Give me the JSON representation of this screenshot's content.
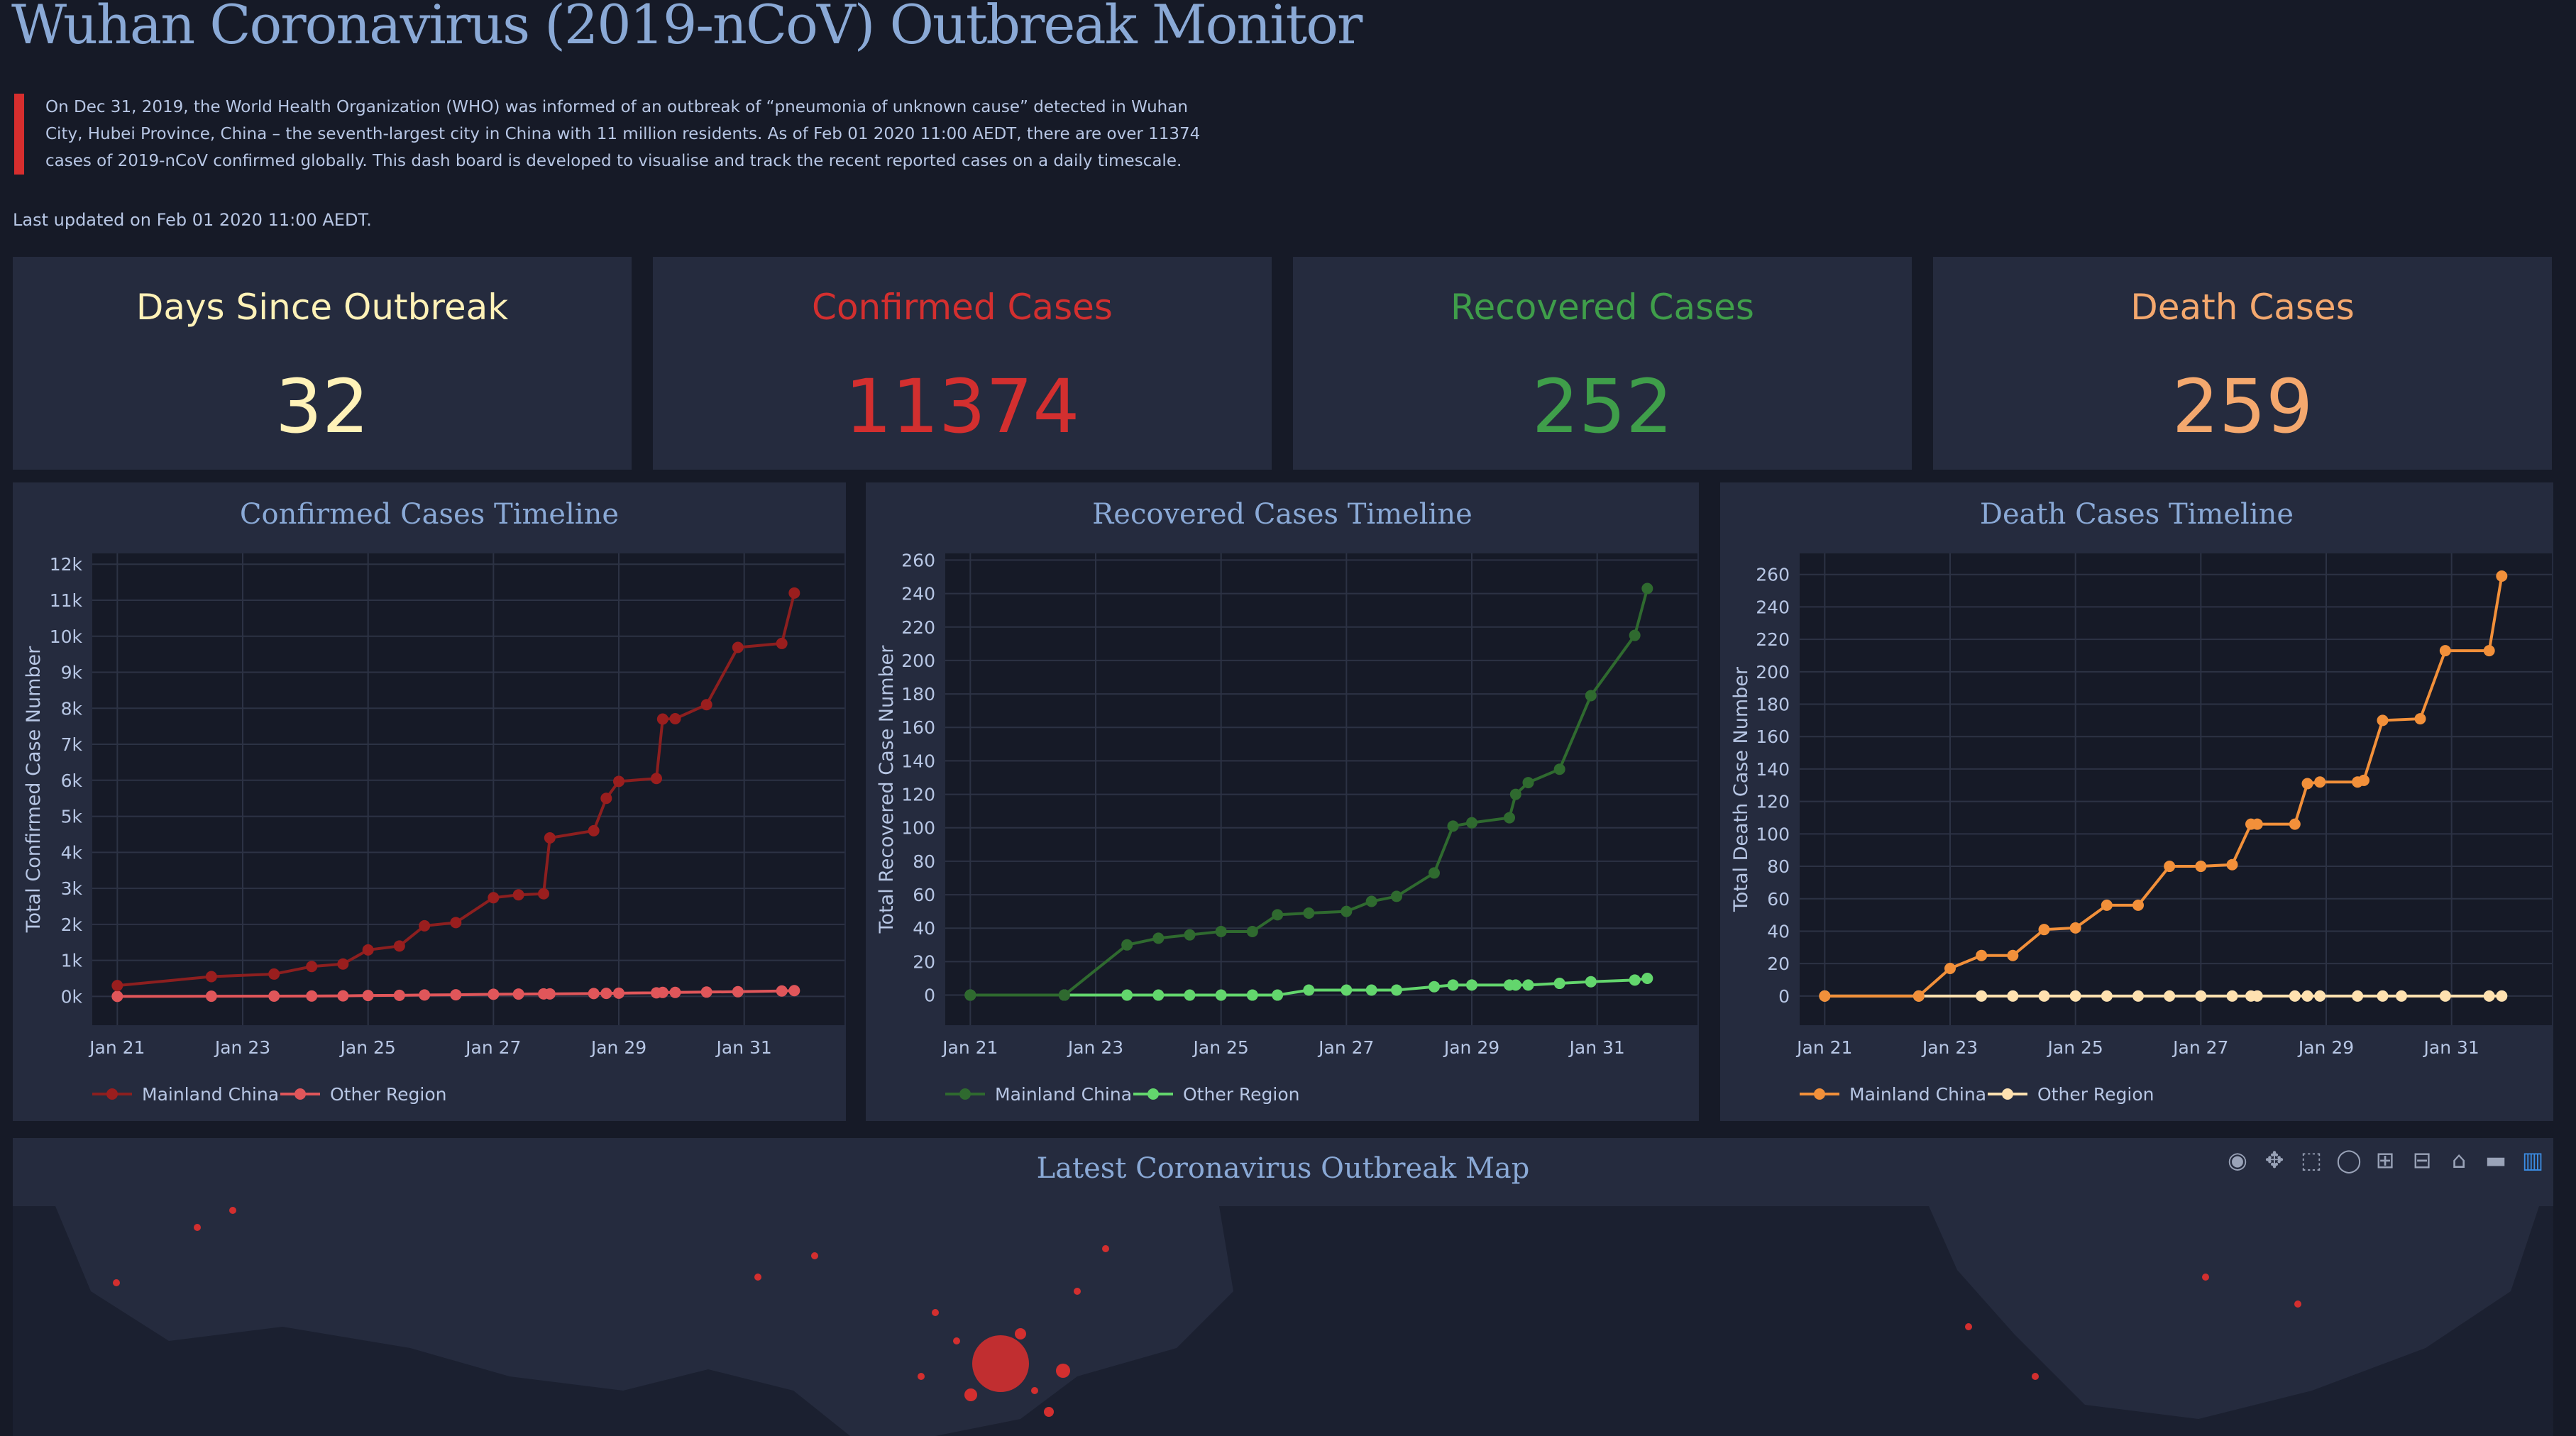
{
  "header": {
    "title": "Wuhan Coronavirus (2019-nCoV) Outbreak Monitor",
    "intro": "On Dec 31, 2019, the World Health Organization (WHO) was informed of an outbreak of “pneumonia of unknown cause” detected in Wuhan City, Hubei Province, China – the seventh-largest city in China with 11 million residents. As of Feb 01 2020 11:00 AEDT, there are over 11374 cases of 2019-nCoV confirmed globally. This dash board is developed to visualise and track the recent reported cases on a daily timescale.",
    "last_updated": "Last updated on Feb 01 2020 11:00 AEDT."
  },
  "stats": [
    {
      "label": "Days Since Outbreak",
      "value": "32",
      "color": "#fff2b8"
    },
    {
      "label": "Confirmed Cases",
      "value": "11374",
      "color": "#d32f2f"
    },
    {
      "label": "Recovered Cases",
      "value": "252",
      "color": "#3f9e4a"
    },
    {
      "label": "Death Cases",
      "value": "259",
      "color": "#f4a86e"
    }
  ],
  "chart_data": [
    {
      "type": "line",
      "title": "Confirmed Cases Timeline",
      "ylabel": "Total Confirmed Case Number",
      "xlabel": "",
      "x_ticks": [
        "Jan 21",
        "Jan 23",
        "Jan 25",
        "Jan 27",
        "Jan 29",
        "Jan 31"
      ],
      "x_range": [
        20.6,
        32.6
      ],
      "ylim": [
        -800,
        12300
      ],
      "y_ticks": [
        0,
        1000,
        2000,
        3000,
        4000,
        5000,
        6000,
        7000,
        8000,
        9000,
        10000,
        11000,
        12000
      ],
      "y_tick_labels": [
        "0k",
        "1k",
        "2k",
        "3k",
        "4k",
        "5k",
        "6k",
        "7k",
        "8k",
        "9k",
        "10k",
        "11k",
        "12k"
      ],
      "grid": true,
      "legend_placement": "bottom-left",
      "series": [
        {
          "name": "Mainland China",
          "color": "#9a1e1e",
          "line": "#8c1f1f",
          "x": [
            21,
            22.5,
            23.5,
            24.1,
            24.6,
            25,
            25.5,
            25.9,
            26.4,
            27,
            27.4,
            27.8,
            27.9,
            28.6,
            28.8,
            29,
            29.6,
            29.7,
            29.9,
            30.4,
            30.9,
            31.6,
            31.8
          ],
          "y": [
            300,
            550,
            620,
            830,
            900,
            1290,
            1400,
            1960,
            2050,
            2740,
            2820,
            2850,
            4400,
            4600,
            5500,
            5970,
            6050,
            7700,
            7710,
            8100,
            9690,
            9800,
            11200
          ]
        },
        {
          "name": "Other Region",
          "color": "#e0565a",
          "line": "#e0565a",
          "x": [
            21,
            22.5,
            23.5,
            24.1,
            24.6,
            25,
            25.5,
            25.9,
            26.4,
            27,
            27.4,
            27.8,
            27.9,
            28.6,
            28.8,
            29,
            29.6,
            29.7,
            29.9,
            30.4,
            30.9,
            31.6,
            31.8
          ],
          "y": [
            0,
            5,
            8,
            10,
            15,
            25,
            30,
            40,
            45,
            60,
            65,
            70,
            70,
            80,
            85,
            90,
            100,
            110,
            110,
            120,
            130,
            150,
            160
          ]
        }
      ]
    },
    {
      "type": "line",
      "title": "Recovered Cases Timeline",
      "ylabel": "Total Recovered Case Number",
      "xlabel": "",
      "x_ticks": [
        "Jan 21",
        "Jan 23",
        "Jan 25",
        "Jan 27",
        "Jan 29",
        "Jan 31"
      ],
      "x_range": [
        20.6,
        32.6
      ],
      "ylim": [
        -18,
        264
      ],
      "y_ticks": [
        0,
        20,
        40,
        60,
        80,
        100,
        120,
        140,
        160,
        180,
        200,
        220,
        240,
        260
      ],
      "y_tick_labels": [
        "0",
        "20",
        "40",
        "60",
        "80",
        "100",
        "120",
        "140",
        "160",
        "180",
        "200",
        "220",
        "240",
        "260"
      ],
      "grid": true,
      "legend_placement": "bottom-left",
      "series": [
        {
          "name": "Mainland China",
          "color": "#2f6a2f",
          "line": "#2f6a2f",
          "x": [
            21,
            22.5,
            23.5,
            24,
            24.5,
            25,
            25.5,
            25.9,
            26.4,
            27,
            27.4,
            27.8,
            28.4,
            28.7,
            29,
            29.6,
            29.7,
            29.9,
            30.4,
            30.9,
            31.6,
            31.8
          ],
          "y": [
            0,
            0,
            30,
            34,
            36,
            38,
            38,
            48,
            49,
            50,
            56,
            59,
            73,
            101,
            103,
            106,
            120,
            127,
            135,
            179,
            215,
            243
          ]
        },
        {
          "name": "Other Region",
          "color": "#63d66d",
          "line": "#63d66d",
          "x": [
            21,
            22.5,
            23.5,
            24,
            24.5,
            25,
            25.5,
            25.9,
            26.4,
            27,
            27.4,
            27.8,
            28.4,
            28.7,
            29,
            29.6,
            29.7,
            29.9,
            30.4,
            30.9,
            31.6,
            31.8
          ],
          "y": [
            0,
            0,
            0,
            0,
            0,
            0,
            0,
            0,
            3,
            3,
            3,
            3,
            5,
            6,
            6,
            6,
            6,
            6,
            7,
            8,
            9,
            10
          ]
        }
      ]
    },
    {
      "type": "line",
      "title": "Death Cases Timeline",
      "ylabel": "Total Death Case Number",
      "xlabel": "",
      "x_ticks": [
        "Jan 21",
        "Jan 23",
        "Jan 25",
        "Jan 27",
        "Jan 29",
        "Jan 31"
      ],
      "x_range": [
        20.6,
        32.6
      ],
      "ylim": [
        -18,
        273
      ],
      "y_ticks": [
        0,
        20,
        40,
        60,
        80,
        100,
        120,
        140,
        160,
        180,
        200,
        220,
        240,
        260
      ],
      "y_tick_labels": [
        "0",
        "20",
        "40",
        "60",
        "80",
        "100",
        "120",
        "140",
        "160",
        "180",
        "200",
        "220",
        "240",
        "260"
      ],
      "grid": true,
      "legend_placement": "bottom-left",
      "series": [
        {
          "name": "Mainland China",
          "color": "#f2903a",
          "line": "#f2903a",
          "x": [
            21,
            22.5,
            23,
            23.5,
            24,
            24.5,
            25,
            25.5,
            26,
            26.5,
            27,
            27.5,
            27.8,
            27.9,
            28.5,
            28.7,
            28.9,
            29.5,
            29.6,
            29.9,
            30.5,
            30.9,
            31.6,
            31.8
          ],
          "y": [
            0,
            0,
            17,
            25,
            25,
            41,
            42,
            56,
            56,
            80,
            80,
            81,
            106,
            106,
            106,
            131,
            132,
            132,
            133,
            170,
            171,
            213,
            213,
            259
          ]
        },
        {
          "name": "Other Region",
          "color": "#ffe1b0",
          "line": "#ffe1b0",
          "x": [
            21,
            22.5,
            23.5,
            24,
            24.5,
            25,
            25.5,
            26,
            26.5,
            27,
            27.5,
            27.8,
            27.9,
            28.5,
            28.7,
            28.9,
            29.5,
            29.9,
            30.2,
            30.9,
            31.6,
            31.8
          ],
          "y": [
            0,
            0,
            0,
            0,
            0,
            0,
            0,
            0,
            0,
            0,
            0,
            0,
            0,
            0,
            0,
            0,
            0,
            0,
            0,
            0,
            0,
            0
          ]
        }
      ]
    }
  ],
  "map": {
    "title": "Latest Coronavirus Outbreak Map",
    "modebar_icons": [
      "camera-icon",
      "pan-icon",
      "box-select-icon",
      "lasso-icon",
      "zoom-in-icon",
      "zoom-out-icon",
      "home-icon",
      "spike-icon",
      "plotly-logo-icon"
    ]
  }
}
